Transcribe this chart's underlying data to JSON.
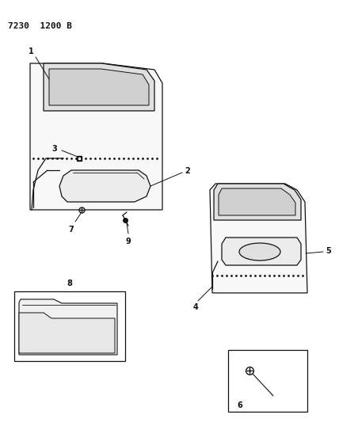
{
  "title": "7230  1200 B",
  "bg_color": "#ffffff",
  "lc": "#111111",
  "title_fontsize": 8,
  "label_fontsize": 7,
  "figsize": [
    4.28,
    5.33
  ],
  "dpi": 100
}
